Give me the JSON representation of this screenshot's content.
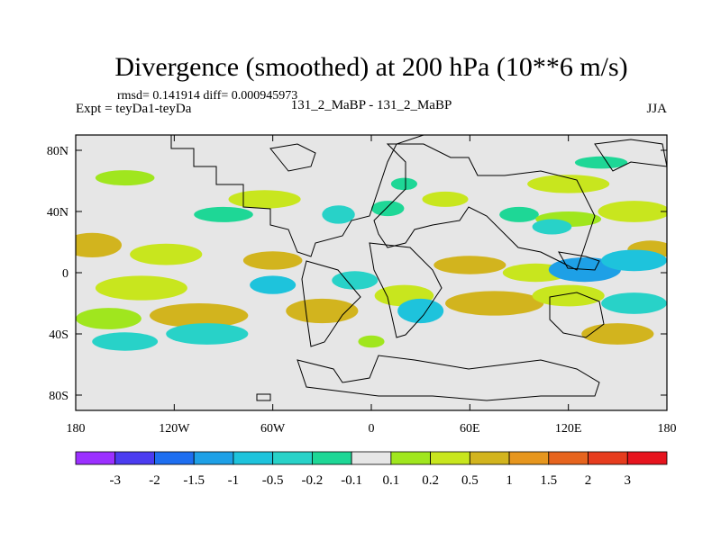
{
  "chart_data": {
    "type": "heatmap",
    "title": "Divergence (smoothed) at 200 hPa (10**6 m/s)",
    "stats": "rmsd= 0.141914  diff= 0.000945973",
    "left_label": "Expt = teyDa1-teyDa",
    "center_label": "131_2_MaBP - 131_2_MaBP",
    "right_label": "JJA",
    "x_ticks": [
      "180",
      "120W",
      "60W",
      "0",
      "60E",
      "120E",
      "180"
    ],
    "x_tick_values": [
      -180,
      -120,
      -60,
      0,
      60,
      120,
      180
    ],
    "y_ticks": [
      "80N",
      "40N",
      "0",
      "40S",
      "80S"
    ],
    "y_tick_values": [
      80,
      40,
      0,
      -40,
      -80
    ],
    "xlim": [
      -180,
      180
    ],
    "ylim": [
      -90,
      90
    ],
    "colorbar": {
      "labels": [
        "-3",
        "-2",
        "-1.5",
        "-1",
        "-0.5",
        "-0.2",
        "-0.1",
        "0.1",
        "0.2",
        "0.5",
        "1",
        "1.5",
        "2",
        "3"
      ],
      "colors": [
        "#9b30ff",
        "#4b3cf0",
        "#1e6ef0",
        "#1ea0e6",
        "#1ec3dc",
        "#28d2c8",
        "#1ed796",
        "#e6e6e6",
        "#a0e61e",
        "#c8e61e",
        "#d2b41e",
        "#e6961e",
        "#e6641e",
        "#e63c1e",
        "#e6141e"
      ]
    },
    "blobs": [
      {
        "lon": -150,
        "lat": 62,
        "w": 18,
        "h": 5,
        "level": 8
      },
      {
        "lon": -65,
        "lat": 48,
        "w": 22,
        "h": 6,
        "level": 9
      },
      {
        "lon": -90,
        "lat": 38,
        "w": 18,
        "h": 5,
        "level": 6
      },
      {
        "lon": 20,
        "lat": 58,
        "w": 8,
        "h": 4,
        "level": 6
      },
      {
        "lon": 10,
        "lat": 42,
        "w": 10,
        "h": 5,
        "level": 6
      },
      {
        "lon": 45,
        "lat": 48,
        "w": 14,
        "h": 5,
        "level": 9
      },
      {
        "lon": 90,
        "lat": 38,
        "w": 12,
        "h": 5,
        "level": 6
      },
      {
        "lon": 120,
        "lat": 58,
        "w": 25,
        "h": 6,
        "level": 9
      },
      {
        "lon": 160,
        "lat": 40,
        "w": 22,
        "h": 7,
        "level": 9
      },
      {
        "lon": 120,
        "lat": 35,
        "w": 20,
        "h": 5,
        "level": 8
      },
      {
        "lon": -170,
        "lat": 18,
        "w": 18,
        "h": 8,
        "level": 10
      },
      {
        "lon": -125,
        "lat": 12,
        "w": 22,
        "h": 7,
        "level": 9
      },
      {
        "lon": -60,
        "lat": 8,
        "w": 18,
        "h": 6,
        "level": 10
      },
      {
        "lon": -140,
        "lat": -10,
        "w": 28,
        "h": 8,
        "level": 9
      },
      {
        "lon": -105,
        "lat": -28,
        "w": 30,
        "h": 8,
        "level": 10
      },
      {
        "lon": -160,
        "lat": -30,
        "w": 20,
        "h": 7,
        "level": 8
      },
      {
        "lon": -30,
        "lat": -25,
        "w": 22,
        "h": 8,
        "level": 10
      },
      {
        "lon": 20,
        "lat": -15,
        "w": 18,
        "h": 7,
        "level": 9
      },
      {
        "lon": 75,
        "lat": -20,
        "w": 30,
        "h": 8,
        "level": 10
      },
      {
        "lon": 120,
        "lat": -15,
        "w": 22,
        "h": 7,
        "level": 9
      },
      {
        "lon": 150,
        "lat": -40,
        "w": 22,
        "h": 7,
        "level": 10
      },
      {
        "lon": 60,
        "lat": 5,
        "w": 22,
        "h": 6,
        "level": 10
      },
      {
        "lon": 100,
        "lat": 0,
        "w": 20,
        "h": 6,
        "level": 9
      },
      {
        "lon": 170,
        "lat": 15,
        "w": 14,
        "h": 6,
        "level": 10
      },
      {
        "lon": -150,
        "lat": -45,
        "w": 20,
        "h": 6,
        "level": 5
      },
      {
        "lon": -100,
        "lat": -40,
        "w": 25,
        "h": 7,
        "level": 5
      },
      {
        "lon": -60,
        "lat": -8,
        "w": 14,
        "h": 6,
        "level": 4
      },
      {
        "lon": -10,
        "lat": -5,
        "w": 14,
        "h": 6,
        "level": 5
      },
      {
        "lon": 30,
        "lat": -25,
        "w": 14,
        "h": 8,
        "level": 4
      },
      {
        "lon": 130,
        "lat": 2,
        "w": 22,
        "h": 8,
        "level": 3
      },
      {
        "lon": 160,
        "lat": 8,
        "w": 20,
        "h": 7,
        "level": 4
      },
      {
        "lon": 110,
        "lat": 30,
        "w": 12,
        "h": 5,
        "level": 5
      },
      {
        "lon": 160,
        "lat": -20,
        "w": 20,
        "h": 7,
        "level": 5
      },
      {
        "lon": -20,
        "lat": 38,
        "w": 10,
        "h": 6,
        "level": 5
      },
      {
        "lon": 140,
        "lat": 72,
        "w": 16,
        "h": 4,
        "level": 6
      },
      {
        "lon": 0,
        "lat": -45,
        "w": 8,
        "h": 4,
        "level": 8
      },
      {
        "lon": -130,
        "lat": 30,
        "w": 16,
        "h": 5,
        "level": 7
      },
      {
        "lon": 40,
        "lat": 20,
        "w": 10,
        "h": 5,
        "level": 7
      }
    ]
  }
}
